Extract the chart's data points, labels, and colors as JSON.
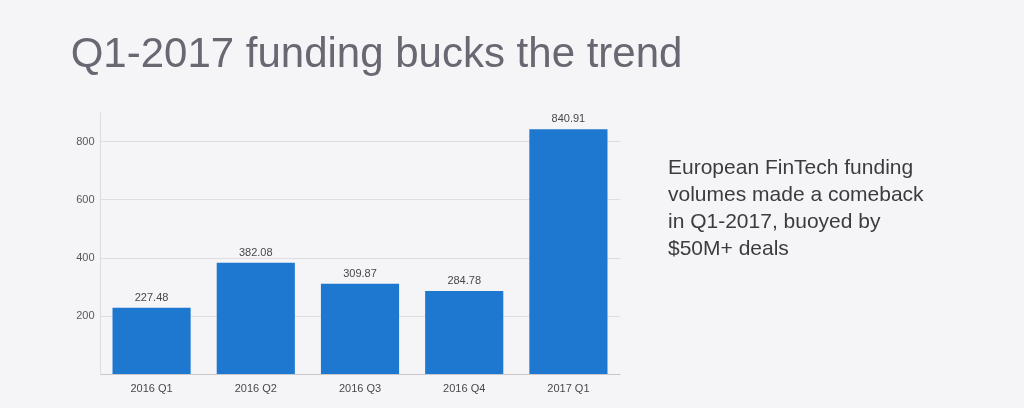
{
  "chart_data": {
    "type": "bar",
    "title": "Q1-2017 funding bucks the trend",
    "categories": [
      "2016 Q1",
      "2016 Q2",
      "2016 Q3",
      "2016 Q4",
      "2017 Q1"
    ],
    "values": [
      227.48,
      382.08,
      309.87,
      284.78,
      840.91
    ],
    "color": "#1f78cf",
    "ylim": [
      0,
      900
    ],
    "yticks": [
      {
        "value": 0,
        "label": null
      },
      200,
      400,
      600,
      800
    ],
    "grid": "y",
    "data_labels": true,
    "annotations": [
      "European FinTech funding volumes made a comeback in Q1-2017, buoyed by $50M+ deals"
    ]
  }
}
